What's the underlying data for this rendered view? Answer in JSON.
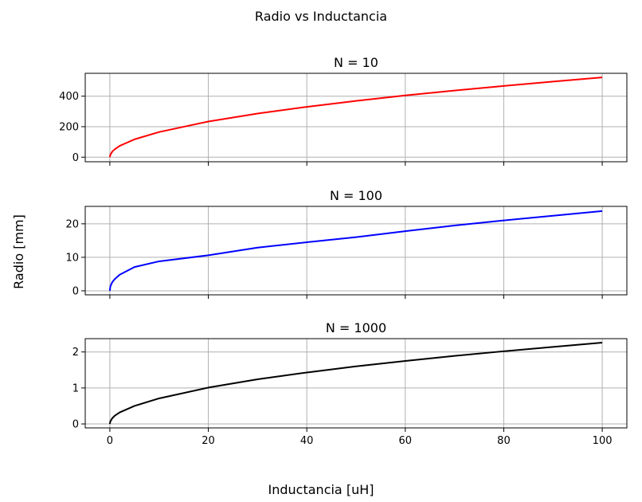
{
  "figure": {
    "suptitle": "Radio vs Inductancia",
    "xlabel": "Inductancia [uH]",
    "ylabel": "Radio [mm]"
  },
  "chart_data": [
    {
      "type": "line",
      "title": "N = 10",
      "xlabel": "",
      "ylabel": "",
      "xlim": [
        -5,
        105
      ],
      "ylim": [
        -30,
        550
      ],
      "xticks": [
        0,
        20,
        40,
        60,
        80,
        100
      ],
      "yticks": [
        0,
        200,
        400
      ],
      "show_xticklabels": false,
      "grid": true,
      "series": [
        {
          "color": "#ff0000",
          "x": [
            0,
            0.1,
            0.5,
            1,
            2,
            5,
            10,
            20,
            30,
            40,
            50,
            60,
            70,
            80,
            90,
            100
          ],
          "y": [
            0,
            16,
            37,
            52,
            74,
            117,
            165,
            234,
            286,
            330,
            369,
            405,
            437,
            467,
            496,
            523
          ]
        }
      ]
    },
    {
      "type": "line",
      "title": "N = 100",
      "xlabel": "",
      "ylabel": "",
      "xlim": [
        -5,
        105
      ],
      "ylim": [
        -1.2,
        25.2
      ],
      "xticks": [
        0,
        20,
        40,
        60,
        80,
        100
      ],
      "yticks": [
        0,
        10,
        20
      ],
      "show_xticklabels": false,
      "grid": true,
      "series": [
        {
          "color": "#0000ff",
          "x": [
            0,
            0.1,
            0.5,
            1,
            2,
            5,
            10,
            20,
            30,
            40,
            50,
            60,
            70,
            80,
            90,
            100
          ],
          "y": [
            0,
            1.3,
            2.6,
            3.5,
            4.8,
            7.1,
            8.8,
            10.6,
            12.9,
            14.5,
            16.0,
            17.8,
            19.5,
            21.0,
            22.4,
            23.8
          ]
        }
      ]
    },
    {
      "type": "line",
      "title": "N = 1000",
      "xlabel": "",
      "ylabel": "",
      "xlim": [
        -5,
        105
      ],
      "ylim": [
        -0.11,
        2.37
      ],
      "xticks": [
        0,
        20,
        40,
        60,
        80,
        100
      ],
      "yticks": [
        0,
        1,
        2
      ],
      "show_xticklabels": true,
      "grid": true,
      "series": [
        {
          "color": "#000000",
          "x": [
            0,
            0.1,
            0.5,
            1,
            2,
            5,
            10,
            20,
            30,
            40,
            50,
            60,
            70,
            80,
            90,
            100
          ],
          "y": [
            0,
            0.07,
            0.16,
            0.23,
            0.32,
            0.5,
            0.71,
            1.01,
            1.24,
            1.43,
            1.6,
            1.75,
            1.89,
            2.02,
            2.14,
            2.26
          ]
        }
      ]
    }
  ]
}
